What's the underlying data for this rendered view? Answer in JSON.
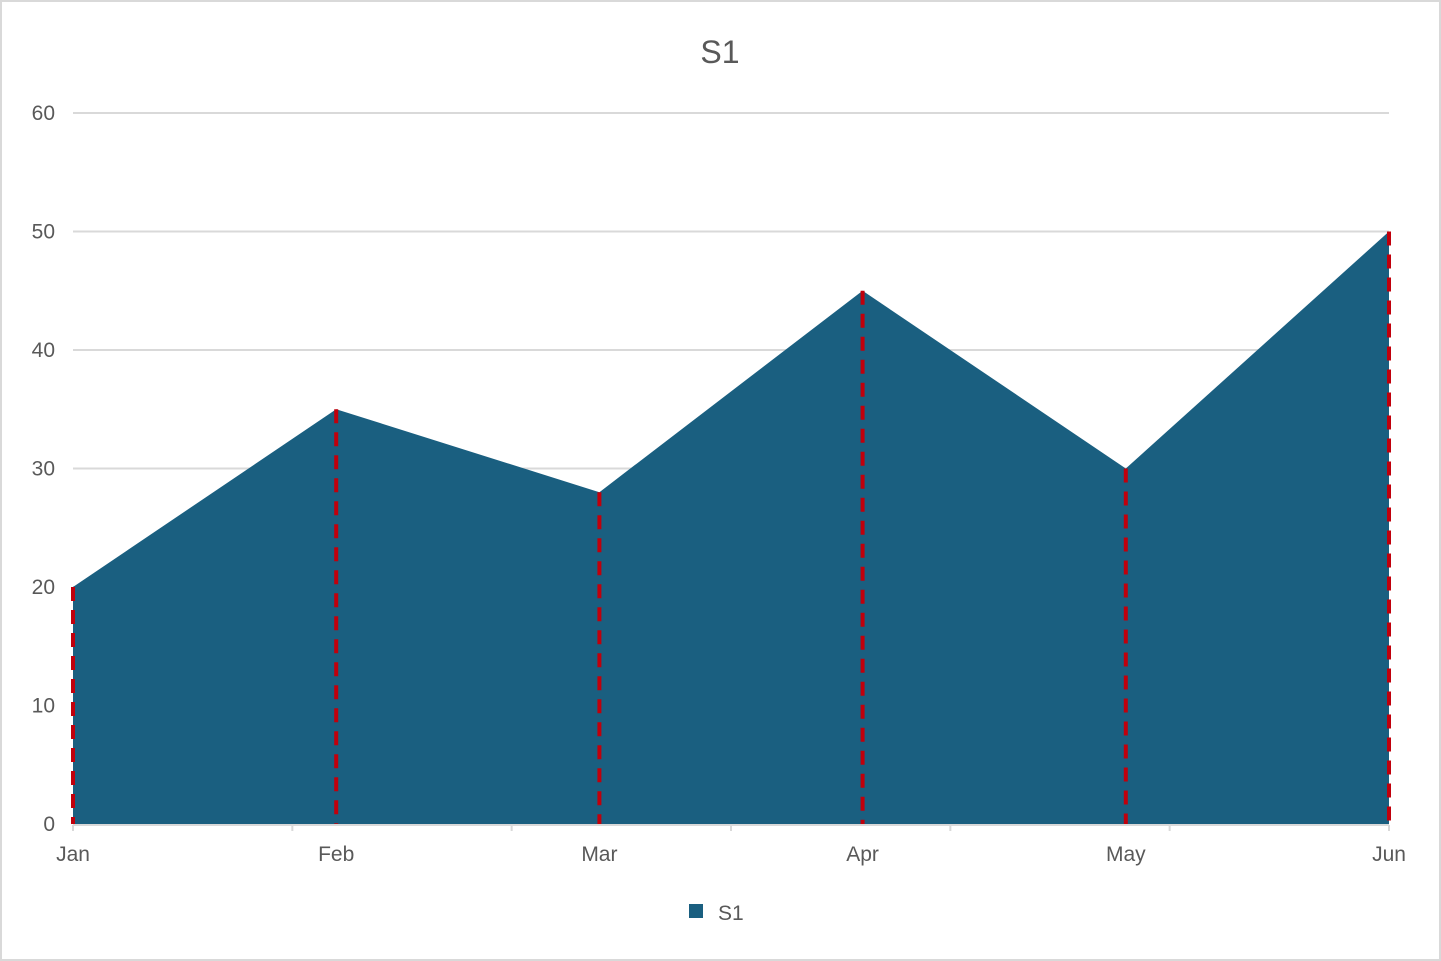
{
  "chart_data": {
    "type": "area",
    "title": "S1",
    "categories": [
      "Jan",
      "Feb",
      "Mar",
      "Apr",
      "May",
      "Jun"
    ],
    "series": [
      {
        "name": "S1",
        "values": [
          20,
          35,
          28,
          45,
          30,
          50
        ],
        "color": "#1a5f80"
      }
    ],
    "ylim": [
      0,
      60
    ],
    "yticks": [
      0,
      10,
      20,
      30,
      40,
      50,
      60
    ],
    "grid": true,
    "drop_lines": {
      "style": "dashed",
      "color": "#c0000c"
    },
    "legend": {
      "position": "bottom",
      "entries": [
        "S1"
      ]
    },
    "colors": {
      "gridline": "#d9d9d9",
      "axis": "#d9d9d9",
      "text": "#595959"
    }
  }
}
